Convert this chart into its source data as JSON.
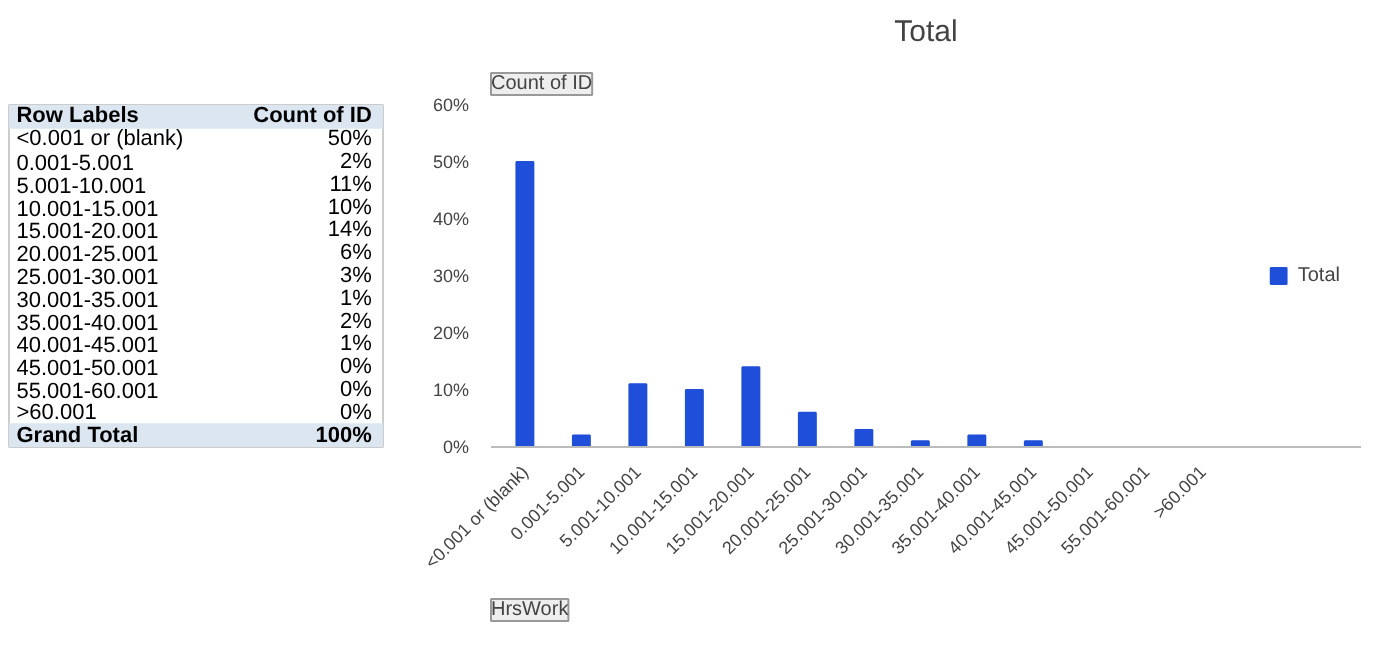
{
  "chart_data": {
    "type": "bar",
    "title": "Total",
    "categories": [
      "<0.001 or (blank)",
      "0.001-5.001",
      "5.001-10.001",
      "10.001-15.001",
      "15.001-20.001",
      "20.001-25.001",
      "25.001-30.001",
      "30.001-35.001",
      "35.001-40.001",
      "40.001-45.001",
      "45.001-50.001",
      "55.001-60.001",
      ">60.001"
    ],
    "series": [
      {
        "name": "Total",
        "color": "#1f4fd8",
        "values": [
          50,
          2,
          11,
          10,
          14,
          6,
          3,
          1,
          2,
          1,
          0,
          0,
          0
        ]
      }
    ],
    "value_labels": [
      "50%",
      "2%",
      "11%",
      "10%",
      "14%",
      "6%",
      "3%",
      "1%",
      "2%",
      "1%",
      "0%",
      "0%",
      "0%"
    ],
    "ylim": [
      0,
      60
    ],
    "yticks": [
      {
        "value": 0,
        "label": "0%"
      },
      {
        "value": 10,
        "label": "10%"
      },
      {
        "value": 20,
        "label": "20%"
      },
      {
        "value": 30,
        "label": "30%"
      },
      {
        "value": 40,
        "label": "40%"
      },
      {
        "value": 50,
        "label": "50%"
      },
      {
        "value": 60,
        "label": "60%"
      }
    ],
    "legend": "right",
    "annotations": [
      "Row Labels",
      "Count of ID",
      "Grand Total",
      "100%",
      "Count of ID",
      "HrsWork"
    ]
  }
}
